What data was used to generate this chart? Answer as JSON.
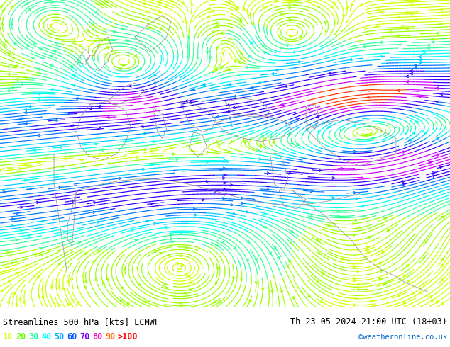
{
  "title_left": "Streamlines 500 hPa [kts] ECMWF",
  "title_right": "Th 23-05-2024 21:00 UTC (18+03)",
  "credit": "©weatheronline.co.uk",
  "legend_values": [
    "10",
    "20",
    "30",
    "40",
    "50",
    "60",
    "70",
    "80",
    "90",
    ">100"
  ],
  "legend_colors": [
    "#ccff00",
    "#66ff00",
    "#00ff99",
    "#00ffff",
    "#00aaff",
    "#0055ff",
    "#7700ff",
    "#ff00bb",
    "#ff6600",
    "#ff0000"
  ],
  "fig_width": 6.34,
  "fig_height": 4.9,
  "dpi": 100,
  "map_bg": "#b8ffb0",
  "land_color": "#d8ffd8",
  "sea_color": "#e0f8ff",
  "bottom_bg": "#ffffff",
  "speed_bounds": [
    0,
    10,
    20,
    30,
    40,
    50,
    60,
    70,
    80,
    90,
    100,
    200
  ],
  "cmap_colors": [
    "#ccff00",
    "#99ff00",
    "#33ff99",
    "#00ffee",
    "#00ccff",
    "#0077ff",
    "#3300ff",
    "#cc00ff",
    "#ff3300",
    "#ff0000",
    "#ff0000"
  ]
}
